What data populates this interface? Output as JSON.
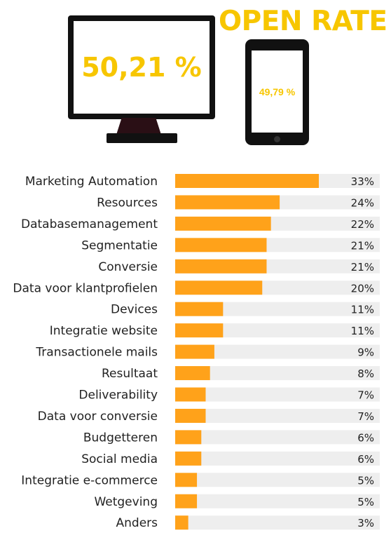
{
  "header": {
    "title": "OPEN RATE",
    "desktop_value": "50,21 %",
    "mobile_value": "49,79 %"
  },
  "colors": {
    "accent": "#f7c600",
    "bar": "#ffa21a",
    "track": "#eeeeee"
  },
  "chart_data": {
    "type": "bar",
    "orientation": "horizontal",
    "categories": [
      "Marketing Automation",
      "Resources",
      "Databasemanagement",
      "Segmentatie",
      "Conversie",
      "Data voor klantprofielen",
      "Devices",
      "Integratie website",
      "Transactionele mails",
      "Resultaat",
      "Deliverability",
      "Data voor conversie",
      "Budgetteren",
      "Social media",
      "Integratie e-commerce",
      "Wetgeving",
      "Anders"
    ],
    "values": [
      33,
      24,
      22,
      21,
      21,
      20,
      11,
      11,
      9,
      8,
      7,
      7,
      6,
      6,
      5,
      5,
      3
    ],
    "value_labels": [
      "33%",
      "24%",
      "22%",
      "21%",
      "21%",
      "20%",
      "11%",
      "11%",
      "9%",
      "8%",
      "7%",
      "7%",
      "6%",
      "6%",
      "5%",
      "5%",
      "3%"
    ],
    "xlim": [
      0,
      47
    ],
    "grid": false,
    "legend": "none"
  }
}
